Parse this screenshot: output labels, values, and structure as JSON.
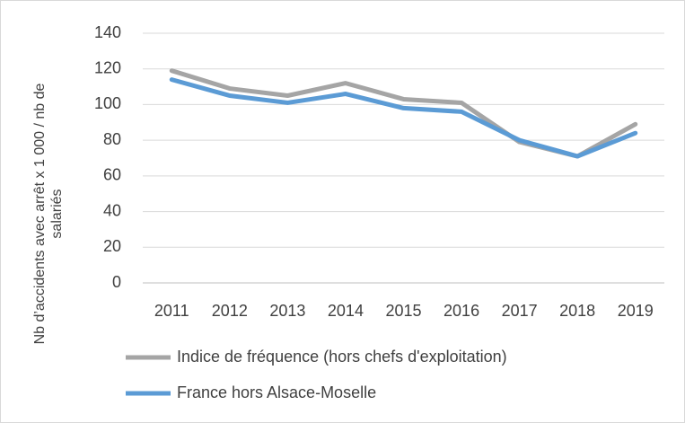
{
  "chart_data": {
    "type": "line",
    "y_label": "Nb d’accidents avec arrêt x 1 000 / nb de salariés",
    "categories": [
      "2011",
      "2012",
      "2013",
      "2014",
      "2015",
      "2016",
      "2017",
      "2018",
      "2019"
    ],
    "series": [
      {
        "name": "Indice de fréquence (hors chefs d'exploitation)",
        "color": "#a5a5a5",
        "values": [
          119,
          109,
          105,
          112,
          103,
          101,
          79,
          71,
          89
        ]
      },
      {
        "name": "France hors Alsace-Moselle",
        "color": "#5b9bd5",
        "values": [
          114,
          105,
          101,
          106,
          98,
          96,
          80,
          71,
          84
        ]
      }
    ],
    "ylim": [
      0,
      140
    ],
    "yticks": [
      0,
      20,
      40,
      60,
      80,
      100,
      120,
      140
    ],
    "grid": true,
    "legend": "bottom"
  }
}
